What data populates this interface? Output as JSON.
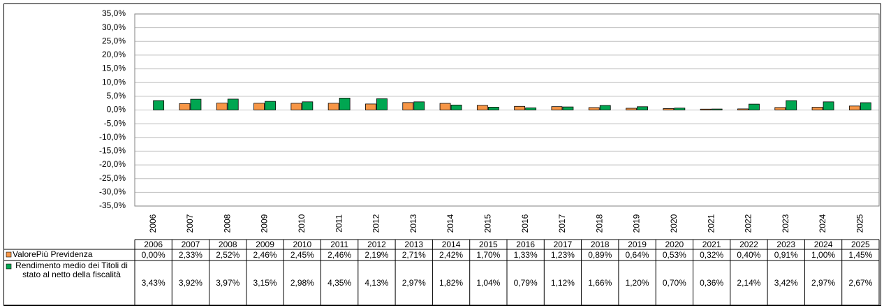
{
  "chart_data": {
    "type": "bar",
    "categories": [
      "2006",
      "2007",
      "2008",
      "2009",
      "2010",
      "2011",
      "2012",
      "2013",
      "2014",
      "2015",
      "2016",
      "2017",
      "2018",
      "2019",
      "2020",
      "2021",
      "2022",
      "2023",
      "2024",
      "2025"
    ],
    "series": [
      {
        "name": "ValorePiù Previdenza",
        "color": "#f79646",
        "values": [
          0.0,
          2.33,
          2.52,
          2.46,
          2.45,
          2.46,
          2.19,
          2.71,
          2.42,
          1.7,
          1.33,
          1.23,
          0.89,
          0.64,
          0.53,
          0.32,
          0.4,
          0.91,
          1.0,
          1.45
        ],
        "value_labels": [
          "0,00%",
          "2,33%",
          "2,52%",
          "2,46%",
          "2,45%",
          "2,46%",
          "2,19%",
          "2,71%",
          "2,42%",
          "1,70%",
          "1,33%",
          "1,23%",
          "0,89%",
          "0,64%",
          "0,53%",
          "0,32%",
          "0,40%",
          "0,91%",
          "1,00%",
          "1,45%"
        ]
      },
      {
        "name": "Rendimento medio dei Titoli di stato al netto della fiscalità",
        "color": "#00a651",
        "values": [
          3.43,
          3.92,
          3.97,
          3.15,
          2.98,
          4.35,
          4.13,
          2.97,
          1.82,
          1.04,
          0.79,
          1.12,
          1.66,
          1.2,
          0.7,
          0.36,
          2.14,
          3.42,
          2.97,
          2.67
        ],
        "value_labels": [
          "3,43%",
          "3,92%",
          "3,97%",
          "3,15%",
          "2,98%",
          "4,35%",
          "4,13%",
          "2,97%",
          "1,82%",
          "1,04%",
          "0,79%",
          "1,12%",
          "1,66%",
          "1,20%",
          "0,70%",
          "0,36%",
          "2,14%",
          "3,42%",
          "2,97%",
          "2,67%"
        ]
      }
    ],
    "ylim": [
      -35,
      35
    ],
    "yticks": [
      {
        "value": 35,
        "label": "35,0%"
      },
      {
        "value": 30,
        "label": "30,0%"
      },
      {
        "value": 25,
        "label": "25,0%"
      },
      {
        "value": 20,
        "label": "20,0%"
      },
      {
        "value": 15,
        "label": "15,0%"
      },
      {
        "value": 10,
        "label": "10,0%"
      },
      {
        "value": 5,
        "label": "5,0%"
      },
      {
        "value": 0,
        "label": "0,0%"
      },
      {
        "value": -5,
        "label": "-5,0%"
      },
      {
        "value": -10,
        "label": "-10,0%"
      },
      {
        "value": -15,
        "label": "-15,0%"
      },
      {
        "value": -20,
        "label": "-20,0%"
      },
      {
        "value": -25,
        "label": "-25,0%"
      },
      {
        "value": -30,
        "label": "-30,0%"
      },
      {
        "value": -35,
        "label": "-35,0%"
      }
    ],
    "grid": true
  }
}
